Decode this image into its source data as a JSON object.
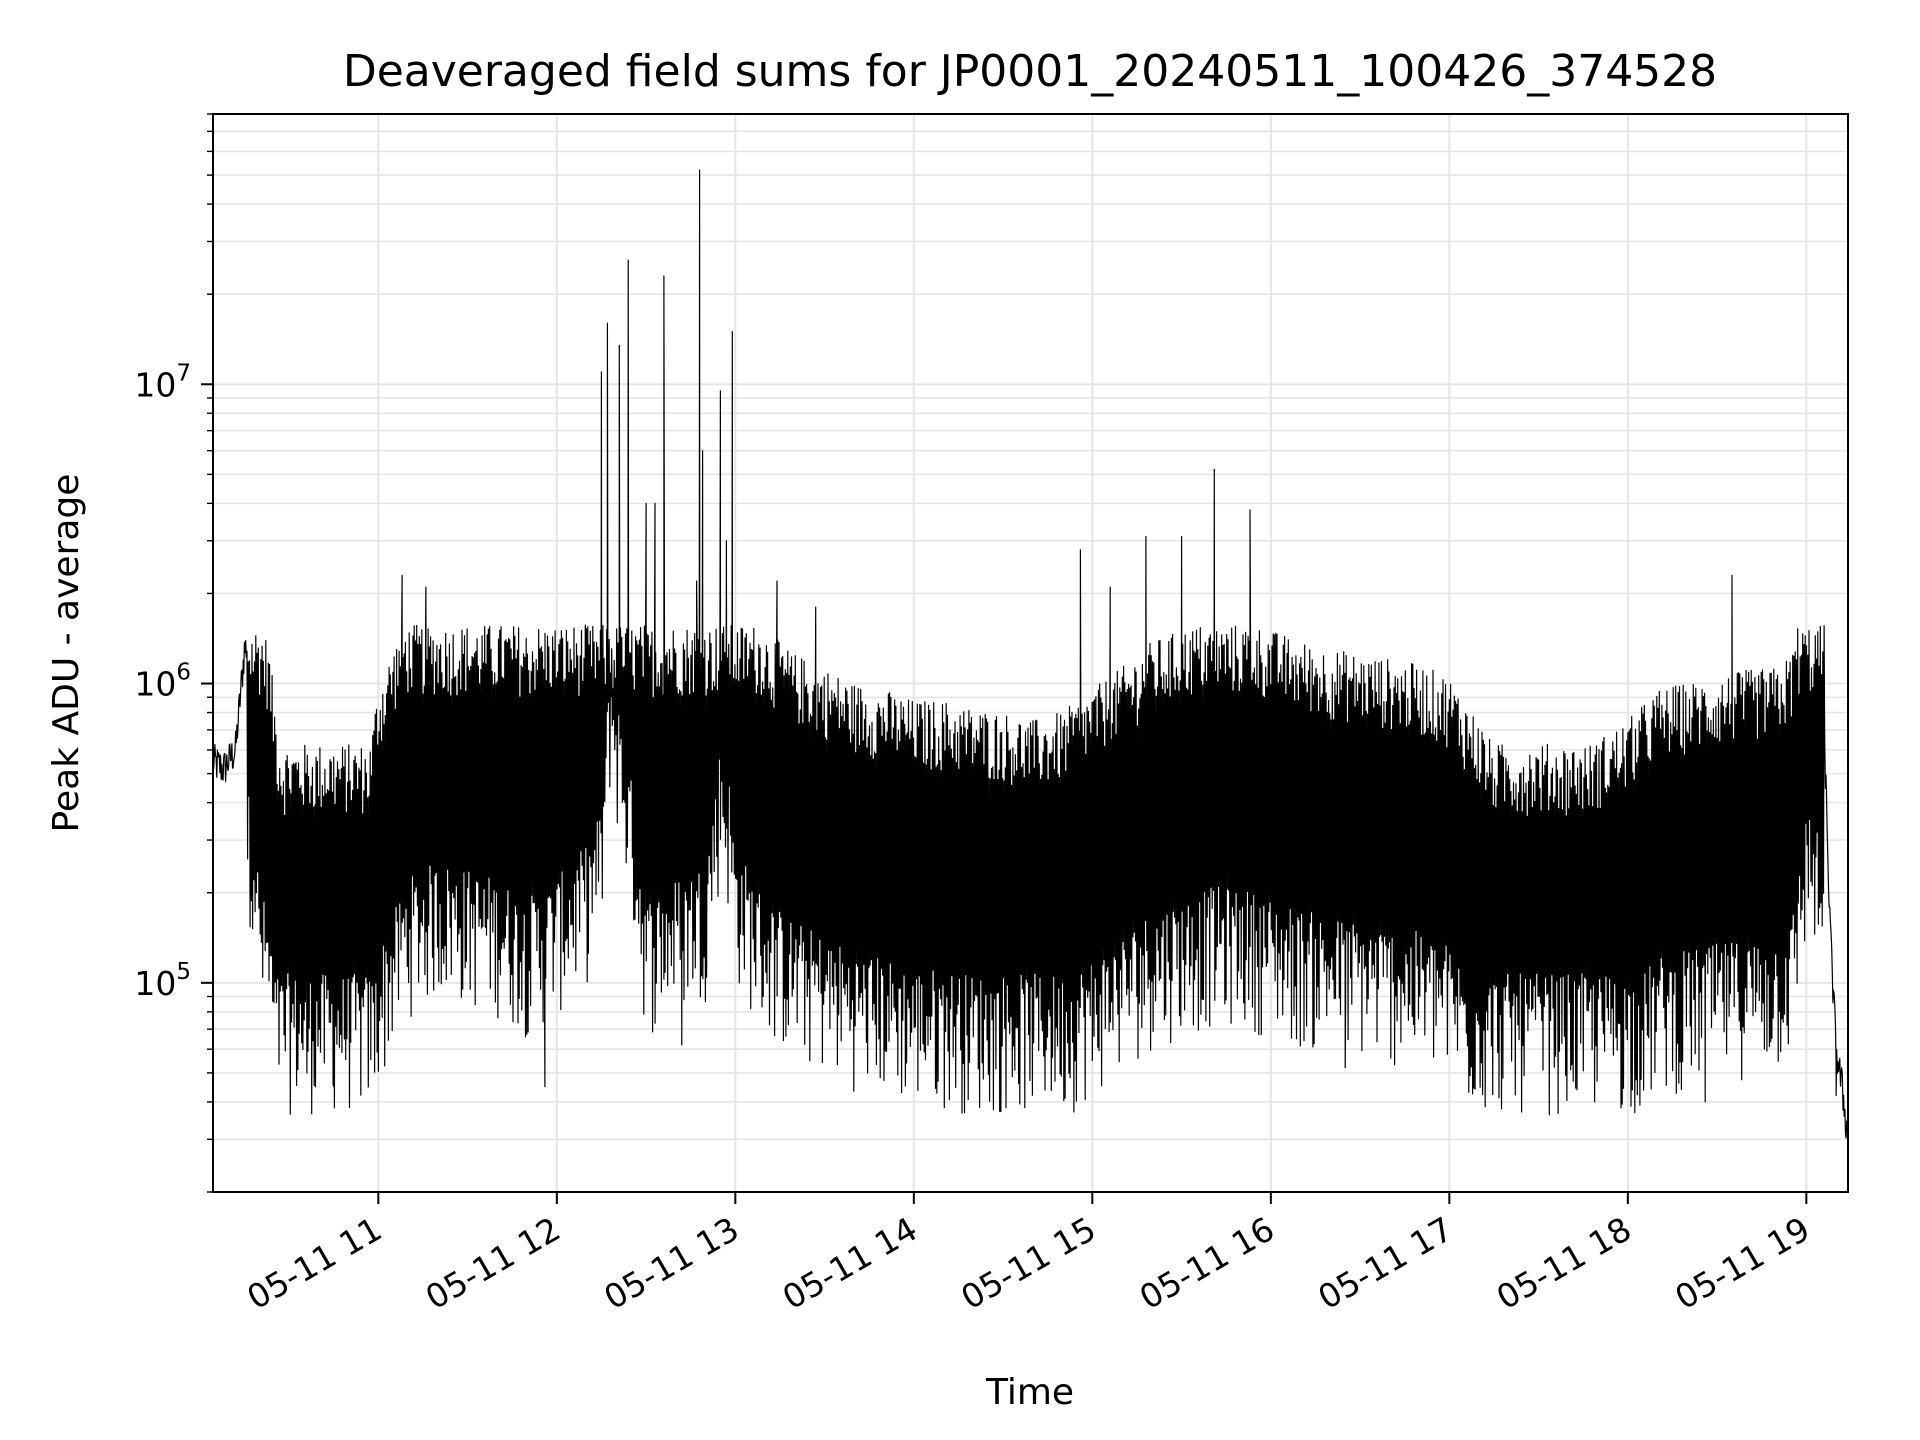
{
  "chart_data": {
    "type": "line",
    "title": "Deaveraged field sums for JP0001_20240511_100426_374528",
    "xlabel": "Time",
    "ylabel": "Peak ADU - average",
    "yscale": "log",
    "ylim": [
      20000,
      80000000
    ],
    "xlim": [
      "2024-05-11 10:04:26",
      "2024-05-11 19:14:00"
    ],
    "grid": true,
    "line_color": "#000000",
    "grid_color": "#e5e5e5",
    "x_ticks": [
      "05-11 11",
      "05-11 12",
      "05-11 13",
      "05-11 14",
      "05-11 15",
      "05-11 16",
      "05-11 17",
      "05-11 18",
      "05-11 19"
    ],
    "y_ticks": [
      {
        "base": "10",
        "exp": "5"
      },
      {
        "base": "10",
        "exp": "6"
      },
      {
        "base": "10",
        "exp": "7"
      }
    ],
    "series": [
      {
        "x": [
          "2024-05-11 10:04:26",
          "2024-05-11 10:08:00",
          "2024-05-11 10:12:00",
          "2024-05-11 10:15:00",
          "2024-05-11 10:18:00",
          "2024-05-11 10:20:00",
          "2024-05-11 10:23:00",
          "2024-05-11 10:26:00",
          "2024-05-11 10:30:00",
          "2024-05-11 10:36:00",
          "2024-05-11 10:42:00",
          "2024-05-11 10:48:00",
          "2024-05-11 10:54:00",
          "2024-05-11 11:00:00",
          "2024-05-11 11:10:00",
          "2024-05-11 11:20:00",
          "2024-05-11 11:30:00",
          "2024-05-11 11:40:00",
          "2024-05-11 11:50:00",
          "2024-05-11 12:00:00",
          "2024-05-11 12:10:00",
          "2024-05-11 12:15:00",
          "2024-05-11 12:18:00",
          "2024-05-11 12:20:00",
          "2024-05-11 12:25:00",
          "2024-05-11 12:30:00",
          "2024-05-11 12:40:00",
          "2024-05-11 12:50:00",
          "2024-05-11 12:55:00",
          "2024-05-11 12:58:00",
          "2024-05-11 13:00:00",
          "2024-05-11 13:10:00",
          "2024-05-11 13:20:00",
          "2024-05-11 13:30:00",
          "2024-05-11 13:40:00",
          "2024-05-11 13:50:00",
          "2024-05-11 14:00:00",
          "2024-05-11 14:10:00",
          "2024-05-11 14:20:00",
          "2024-05-11 14:30:00",
          "2024-05-11 14:40:00",
          "2024-05-11 14:50:00",
          "2024-05-11 15:00:00",
          "2024-05-11 15:10:00",
          "2024-05-11 15:20:00",
          "2024-05-11 15:30:00",
          "2024-05-11 15:40:00",
          "2024-05-11 15:50:00",
          "2024-05-11 16:00:00",
          "2024-05-11 16:10:00",
          "2024-05-11 16:20:00",
          "2024-05-11 16:30:00",
          "2024-05-11 16:40:00",
          "2024-05-11 16:50:00",
          "2024-05-11 17:00:00",
          "2024-05-11 17:10:00",
          "2024-05-11 17:20:00",
          "2024-05-11 17:30:00",
          "2024-05-11 17:40:00",
          "2024-05-11 17:50:00",
          "2024-05-11 18:00:00",
          "2024-05-11 18:10:00",
          "2024-05-11 18:20:00",
          "2024-05-11 18:30:00",
          "2024-05-11 18:40:00",
          "2024-05-11 18:50:00",
          "2024-05-11 18:55:00",
          "2024-05-11 19:00:00",
          "2024-05-11 19:03:00",
          "2024-05-11 19:06:00",
          "2024-05-11 19:08:00",
          "2024-05-11 19:10:00",
          "2024-05-11 19:12:00",
          "2024-05-11 19:14:00"
        ],
        "y": [
          550000,
          520000,
          600000,
          1300000,
          1400000,
          650000,
          550000,
          300000,
          180000,
          120000,
          90000,
          100000,
          150000,
          400000,
          700000,
          800000,
          750000,
          700000,
          600000,
          700000,
          900000,
          1200000,
          4000000,
          3000000,
          1500000,
          600000,
          700000,
          800000,
          2000000,
          1500000,
          900000,
          600000,
          500000,
          450000,
          400000,
          380000,
          350000,
          350000,
          330000,
          320000,
          300000,
          320000,
          380000,
          450000,
          550000,
          600000,
          650000,
          650000,
          600000,
          550000,
          520000,
          500000,
          480000,
          460000,
          420000,
          300000,
          200000,
          180000,
          220000,
          260000,
          300000,
          380000,
          400000,
          420000,
          440000,
          450000,
          500000,
          1200000,
          1100000,
          700000,
          150000,
          60000,
          45000,
          30000
        ],
        "spikes": [
          {
            "x": "2024-05-11 11:08:00",
            "y": 2300000
          },
          {
            "x": "2024-05-11 11:16:00",
            "y": 2100000
          },
          {
            "x": "2024-05-11 12:15:00",
            "y": 11000000
          },
          {
            "x": "2024-05-11 12:17:00",
            "y": 16000000
          },
          {
            "x": "2024-05-11 12:21:00",
            "y": 13500000
          },
          {
            "x": "2024-05-11 12:24:00",
            "y": 26000000
          },
          {
            "x": "2024-05-11 12:30:00",
            "y": 4000000
          },
          {
            "x": "2024-05-11 12:33:00",
            "y": 4000000
          },
          {
            "x": "2024-05-11 12:36:00",
            "y": 23000000
          },
          {
            "x": "2024-05-11 12:47:00",
            "y": 2200000
          },
          {
            "x": "2024-05-11 12:57:00",
            "y": 3000000
          },
          {
            "x": "2024-05-11 12:49:00",
            "y": 6000000
          },
          {
            "x": "2024-05-11 12:59:00",
            "y": 15000000
          },
          {
            "x": "2024-05-11 12:48:00",
            "y": 52000000
          },
          {
            "x": "2024-05-11 12:55:00",
            "y": 9500000
          },
          {
            "x": "2024-05-11 13:14:00",
            "y": 2200000
          },
          {
            "x": "2024-05-11 13:27:00",
            "y": 1800000
          },
          {
            "x": "2024-05-11 14:56:00",
            "y": 2800000
          },
          {
            "x": "2024-05-11 15:06:00",
            "y": 2100000
          },
          {
            "x": "2024-05-11 15:18:00",
            "y": 3100000
          },
          {
            "x": "2024-05-11 15:30:00",
            "y": 3100000
          },
          {
            "x": "2024-05-11 15:41:00",
            "y": 5200000
          },
          {
            "x": "2024-05-11 15:53:00",
            "y": 3800000
          },
          {
            "x": "2024-05-11 18:35:00",
            "y": 2300000
          }
        ],
        "dips": [
          {
            "x": "2024-05-11 10:36:00",
            "y": 50000
          },
          {
            "x": "2024-05-11 10:45:00",
            "y": 45000
          },
          {
            "x": "2024-05-11 11:56:00",
            "y": 45000
          },
          {
            "x": "2024-05-11 12:42:00",
            "y": 62000
          },
          {
            "x": "2024-05-11 15:00:00",
            "y": 55000
          },
          {
            "x": "2024-05-11 16:25:00",
            "y": 52000
          },
          {
            "x": "2024-05-11 17:18:00",
            "y": 48000
          },
          {
            "x": "2024-05-11 18:18:00",
            "y": 44000
          },
          {
            "x": "2024-05-11 18:26:00",
            "y": 40000
          },
          {
            "x": "2024-05-11 19:10:00",
            "y": 42000
          }
        ],
        "noise_range": [
          60000,
          1500000
        ]
      }
    ]
  }
}
